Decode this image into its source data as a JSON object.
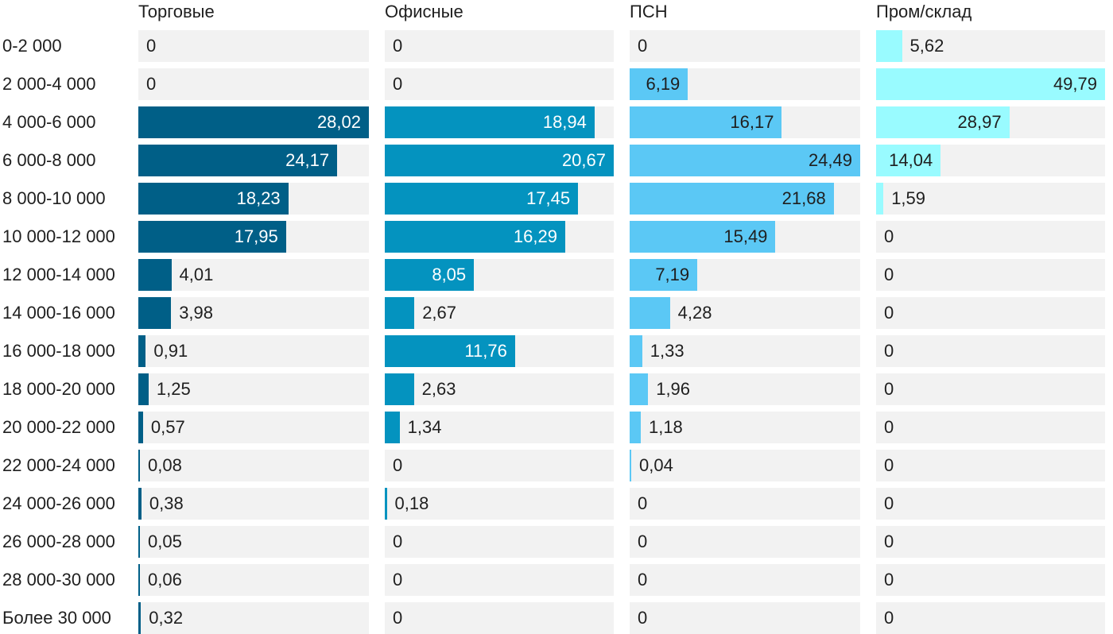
{
  "chart_data": {
    "type": "bar",
    "orientation": "horizontal",
    "layout": "small-multiples",
    "categories": [
      "0-2 000",
      "2 000-4 000",
      "4 000-6 000",
      "6 000-8 000",
      "8 000-10 000",
      "10 000-12 000",
      "12 000-14 000",
      "14 000-16 000",
      "16 000-18 000",
      "18 000-20 000",
      "20 000-22 000",
      "22 000-24 000",
      "24 000-26 000",
      "26 000-28 000",
      "28 000-30 000",
      "Более 30 000"
    ],
    "series": [
      {
        "name": "Торговые",
        "color": "#005f87",
        "text_inside_color": "#ffffff",
        "values": [
          0,
          0,
          28.02,
          24.17,
          18.23,
          17.95,
          4.01,
          3.98,
          0.91,
          1.25,
          0.57,
          0.08,
          0.38,
          0.05,
          0.06,
          0.32
        ],
        "labels": [
          "0",
          "0",
          "28,02",
          "24,17",
          "18,23",
          "17,95",
          "4,01",
          "3,98",
          "0,91",
          "1,25",
          "0,57",
          "0,08",
          "0,38",
          "0,05",
          "0,06",
          "0,32"
        ]
      },
      {
        "name": "Офисные",
        "color": "#0493bf",
        "text_inside_color": "#ffffff",
        "values": [
          0,
          0,
          18.94,
          20.67,
          17.45,
          16.29,
          8.05,
          2.67,
          11.76,
          2.63,
          1.34,
          0,
          0.18,
          0,
          0,
          0
        ],
        "labels": [
          "0",
          "0",
          "18,94",
          "20,67",
          "17,45",
          "16,29",
          "8,05",
          "2,67",
          "11,76",
          "2,63",
          "1,34",
          "0",
          "0,18",
          "0",
          "0",
          "0"
        ]
      },
      {
        "name": "ПСН",
        "color": "#5bc8f5",
        "text_inside_color": "#1f1f1f",
        "values": [
          0,
          6.19,
          16.17,
          24.49,
          21.68,
          15.49,
          7.19,
          4.28,
          1.33,
          1.96,
          1.18,
          0.04,
          0,
          0,
          0,
          0
        ],
        "labels": [
          "0",
          "6,19",
          "16,17",
          "24,49",
          "21,68",
          "15,49",
          "7,19",
          "4,28",
          "1,33",
          "1,96",
          "1,18",
          "0,04",
          "0",
          "0",
          "0",
          "0"
        ]
      },
      {
        "name": "Пром/склад",
        "color": "#99fbff",
        "text_inside_color": "#1f1f1f",
        "values": [
          5.62,
          49.79,
          28.97,
          14.04,
          1.59,
          0,
          0,
          0,
          0,
          0,
          0,
          0,
          0,
          0,
          0,
          0
        ],
        "labels": [
          "5,62",
          "49,79",
          "28,97",
          "14,04",
          "1,59",
          "0",
          "0",
          "0",
          "0",
          "0",
          "0",
          "0",
          "0",
          "0",
          "0",
          "0"
        ]
      }
    ]
  }
}
